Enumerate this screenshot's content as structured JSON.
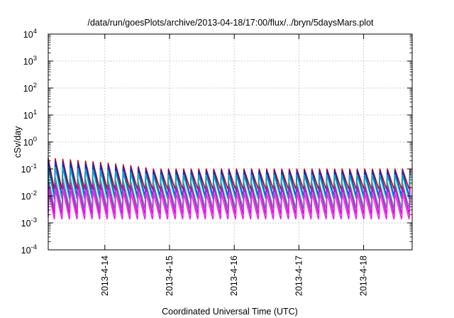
{
  "chart_data": {
    "type": "line",
    "title": "/data/run/goesPlots/archive/2013-04-18/17:00/flux/../bryn/5daysMars.plot",
    "xlabel": "Coordinated Universal Time (UTC)",
    "ylabel": "cSv/day",
    "yscale": "log",
    "ylim_exponent": [
      -4,
      4
    ],
    "y_ticks": [
      {
        "base": "10",
        "exp": "4"
      },
      {
        "base": "10",
        "exp": "3"
      },
      {
        "base": "10",
        "exp": "2"
      },
      {
        "base": "10",
        "exp": "1"
      },
      {
        "base": "10",
        "exp": "0"
      },
      {
        "base": "10",
        "exp": "-1"
      },
      {
        "base": "10",
        "exp": "-2"
      },
      {
        "base": "10",
        "exp": "-3"
      },
      {
        "base": "10",
        "exp": "-4"
      }
    ],
    "xlim": [
      "2013-04-13 03:00",
      "2013-04-18 18:00"
    ],
    "x_ticks": [
      "2013-4-14",
      "2013-4-15",
      "2013-4-16",
      "2013-4-17",
      "2013-4-18"
    ],
    "grid": true,
    "oscillation_period_hours": 2.8,
    "series": [
      {
        "color": "#cc0000",
        "peak_start": 0.25,
        "peak_end": 0.1,
        "trough": 0.018
      },
      {
        "color": "#0033cc",
        "peak_start": 0.2,
        "peak_end": 0.085,
        "trough": 0.01
      },
      {
        "color": "#00aacc",
        "peak_start": 0.12,
        "peak_end": 0.06,
        "trough": 0.008
      },
      {
        "color": "#339999",
        "peak_start": 0.05,
        "peak_end": 0.03,
        "trough": 0.0035
      },
      {
        "color": "#cc00cc",
        "peak_start": 0.03,
        "peak_end": 0.022,
        "trough": 0.0022
      },
      {
        "color": "#ee22ee",
        "peak_start": 0.018,
        "peak_end": 0.013,
        "trough": 0.0014
      }
    ]
  }
}
